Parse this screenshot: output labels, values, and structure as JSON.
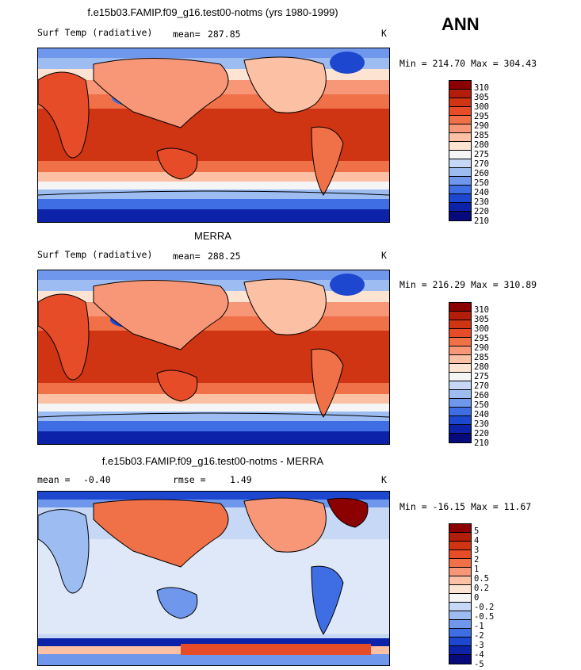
{
  "season": "ANN",
  "panels": [
    {
      "title": "f.e15b03.FAMIP.f09_g16.test00-notms (yrs 1980-1999)",
      "left_label": "Surf Temp (radiative)",
      "stat1_label": "mean=",
      "stat1_value": "287.85",
      "stat2_label": "",
      "stat2_value": "",
      "units": "K",
      "minmax": "Min = 214.70 Max = 304.43",
      "legend_labels": [
        "310",
        "305",
        "300",
        "295",
        "290",
        "285",
        "280",
        "275",
        "270",
        "260",
        "250",
        "240",
        "230",
        "220",
        "210"
      ],
      "legend_colors": [
        "#8b0000",
        "#b21e0a",
        "#cf3413",
        "#e64c28",
        "#f07048",
        "#f79777",
        "#fcc0a4",
        "#fde3d2",
        "#f5f5f5",
        "#c6d8f5",
        "#9cbcf2",
        "#6f97ec",
        "#3f6ee4",
        "#1d47cf",
        "#0c22a8",
        "#070a7a"
      ]
    },
    {
      "title": "MERRA",
      "left_label": "Surf Temp (radiative)",
      "stat1_label": "mean=",
      "stat1_value": "288.25",
      "stat2_label": "",
      "stat2_value": "",
      "units": "K",
      "minmax": "Min = 216.29 Max = 310.89",
      "legend_labels": [
        "310",
        "305",
        "300",
        "295",
        "290",
        "285",
        "280",
        "275",
        "270",
        "260",
        "250",
        "240",
        "230",
        "220",
        "210"
      ],
      "legend_colors": [
        "#8b0000",
        "#b21e0a",
        "#cf3413",
        "#e64c28",
        "#f07048",
        "#f79777",
        "#fcc0a4",
        "#fde3d2",
        "#f5f5f5",
        "#c6d8f5",
        "#9cbcf2",
        "#6f97ec",
        "#3f6ee4",
        "#1d47cf",
        "#0c22a8",
        "#070a7a"
      ]
    },
    {
      "title": "f.e15b03.FAMIP.f09_g16.test00-notms - MERRA",
      "left_label": "",
      "stat1_label": "mean =",
      "stat1_value": "-0.40",
      "stat2_label": "rmse =",
      "stat2_value": "1.49",
      "units": "K",
      "minmax": "Min = -16.15 Max =  11.67",
      "legend_labels": [
        "5",
        "4",
        "3",
        "2",
        "1",
        "0.5",
        "0.2",
        "0",
        "-0.2",
        "-0.5",
        "-1",
        "-2",
        "-3",
        "-4",
        "-5"
      ],
      "legend_colors": [
        "#8b0000",
        "#b21e0a",
        "#cf3413",
        "#e64c28",
        "#f07048",
        "#f79777",
        "#fcc0a4",
        "#fde3d2",
        "#f5f5f5",
        "#c6d8f5",
        "#9cbcf2",
        "#6f97ec",
        "#3f6ee4",
        "#1d47cf",
        "#0c22a8",
        "#070a7a"
      ]
    }
  ]
}
